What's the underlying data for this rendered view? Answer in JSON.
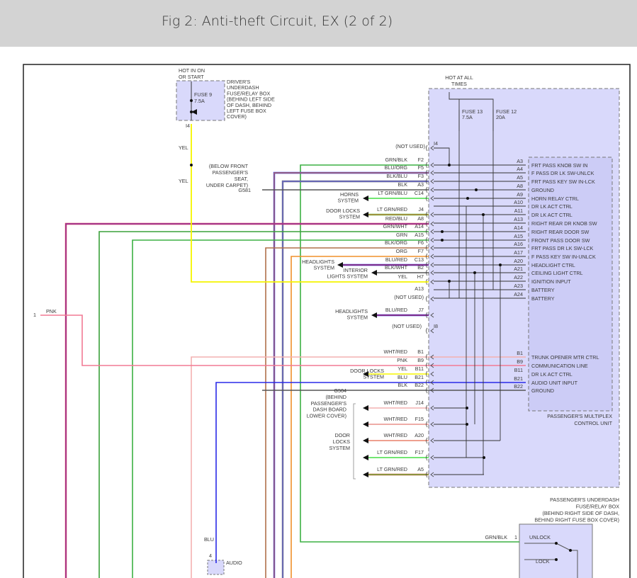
{
  "header": {
    "title": "Fig 2: Anti-theft Circuit, EX (2 of 2)"
  },
  "colors": {
    "box_fill": "#d9d9fb",
    "module_fill": "#ccccf8",
    "box_border": "#777777"
  },
  "drivers_box": {
    "hot_label": [
      "HOT IN ON",
      "OR START"
    ],
    "fuse": [
      "FUSE 9",
      "7.5A"
    ],
    "desc": [
      "DRIVER'S",
      "UNDERDASH",
      "FUSE/RELAY BOX",
      "(BEHIND LEFT SIDE",
      "OF DASH, BEHIND",
      "LEFT FUSE BOX",
      "COVER)"
    ],
    "pin": "I4",
    "wire_labels": [
      "YEL",
      "YEL"
    ]
  },
  "g581": {
    "label": "G581",
    "desc": [
      "(BELOW FRONT",
      "PASSENGER'S",
      "SEAT,",
      "UNDER CARPET)"
    ]
  },
  "g504": {
    "label": "G504",
    "desc": [
      "(BEHIND",
      "PASSENGER'S",
      "DASH BOARD",
      "LOWER COVER)"
    ]
  },
  "pass_box": {
    "hot_label": [
      "HOT AT ALL",
      "TIMES"
    ],
    "fuse13": [
      "FUSE 13",
      "7.5A"
    ],
    "fuse12": [
      "FUSE 12",
      "20A"
    ],
    "desc": [
      "PASSENGER'S UNDERDASH",
      "FUSE/RELAY BOX",
      "(BEHIND RIGHT SIDE OF DASH,",
      "BEHIND RIGHT FUSE BOX COVER)"
    ]
  },
  "module": {
    "desc": [
      "PASSENGER'S MULTIPLEX",
      "CONTROL UNIT"
    ],
    "pins": [
      {
        "pin": "A3",
        "name": "FRT PASS KNOB SW IN"
      },
      {
        "pin": "A4",
        "name": "F PASS DR LK SW-UNLCK"
      },
      {
        "pin": "A5",
        "name": "FRT PASS KEY SW IN-LCK"
      },
      {
        "pin": "A8",
        "name": "GROUND"
      },
      {
        "pin": "A9",
        "name": "HORN RELAY CTRL"
      },
      {
        "pin": "A10",
        "name": "DR LK ACT CTRL"
      },
      {
        "pin": "A11",
        "name": "DR LK ACT CTRL"
      },
      {
        "pin": "A13",
        "name": "RIGHT REAR DR KNOB SW"
      },
      {
        "pin": "A14",
        "name": "RIGHT REAR DOOR SW"
      },
      {
        "pin": "A15",
        "name": "FRONT PASS DOOR SW"
      },
      {
        "pin": "A16",
        "name": "FRT PASS DR LK SW-LCK"
      },
      {
        "pin": "A17",
        "name": "F PASS KEY SW IN-UNLCK"
      },
      {
        "pin": "A20",
        "name": "HEADLIGHT CTRL"
      },
      {
        "pin": "A21",
        "name": "CEILING LIGHT CTRL"
      },
      {
        "pin": "A22",
        "name": "IGNITION INPUT"
      },
      {
        "pin": "A23",
        "name": "BATTERY"
      },
      {
        "pin": "A24",
        "name": "BATTERY"
      },
      {
        "pin": "B1",
        "name": "TRUNK OPENER MTR CTRL"
      },
      {
        "pin": "B9",
        "name": "COMMUNICATION LINE"
      },
      {
        "pin": "B11",
        "name": "DR LK ACT CTRL"
      },
      {
        "pin": "B21",
        "name": "AUDIO UNIT INPUT"
      },
      {
        "pin": "B22",
        "name": "GROUND"
      }
    ]
  },
  "connectors": [
    {
      "pin": "I4",
      "wire": "(NOT USED)",
      "c1": "",
      "c2": ""
    },
    {
      "pin": "F2",
      "wire": "GRN/BLK",
      "c1": "#3cb043",
      "c2": ""
    },
    {
      "pin": "F5",
      "wire": "BLU/ORG",
      "c1": "#2a2ae8",
      "c2": "#f08a24"
    },
    {
      "pin": "F3",
      "wire": "BLK/BLU",
      "c1": "#666677",
      "c2": "#6a6af0"
    },
    {
      "pin": "A3",
      "wire": "BLK",
      "c1": "#555555",
      "c2": ""
    },
    {
      "pin": "C14",
      "wire": "LT GRN/BLU",
      "c1": "#44dd44",
      "c2": ""
    },
    {
      "pin": "J4",
      "wire": "LT GRN/RED",
      "c1": "#66cc44",
      "c2": "#d45a3a"
    },
    {
      "pin": "A8",
      "wire": "RED/BLU",
      "c1": "#e0304a",
      "c2": "#6a3ac8"
    },
    {
      "pin": "A14",
      "wire": "GRN/WHT",
      "c1": "#3aa03a",
      "c2": ""
    },
    {
      "pin": "A15",
      "wire": "GRN",
      "c1": "#3cb043",
      "c2": ""
    },
    {
      "pin": "F6",
      "wire": "BLK/ORG",
      "c1": "#b0704a",
      "c2": ""
    },
    {
      "pin": "F7",
      "wire": "ORG",
      "c1": "#f0902a",
      "c2": ""
    },
    {
      "pin": "C13",
      "wire": "BLU/RED",
      "c1": "#2a2ae8",
      "c2": "#d03030"
    },
    {
      "pin": "B2",
      "wire": "BLK/WHT",
      "c1": "#555555",
      "c2": ""
    },
    {
      "pin": "H7",
      "wire": "YEL",
      "c1": "#f5f500",
      "c2": ""
    },
    {
      "pin": "A13",
      "wire": "(NOT USED)",
      "c1": "",
      "c2": ""
    },
    {
      "pin": "J7",
      "wire": "BLU/RED",
      "c1": "#2a2ae8",
      "c2": "#d03030"
    },
    {
      "pin": "I8",
      "wire": "(NOT USED)",
      "c1": "",
      "c2": ""
    },
    {
      "pin": "B1",
      "wire": "WHT/RED",
      "c1": "#f4b0b0",
      "c2": ""
    },
    {
      "pin": "B9",
      "wire": "PNK",
      "c1": "#f27a94",
      "c2": ""
    },
    {
      "pin": "B11",
      "wire": "YEL",
      "c1": "#f5f500",
      "c2": ""
    },
    {
      "pin": "B21",
      "wire": "BLU",
      "c1": "#2a2ae8",
      "c2": ""
    },
    {
      "pin": "B22",
      "wire": "BLK",
      "c1": "#555555",
      "c2": ""
    },
    {
      "pin": "J14",
      "wire": "WHT/RED",
      "c1": "#f4b0b0",
      "c2": ""
    },
    {
      "pin": "F15",
      "wire": "WHT/RED",
      "c1": "#e8908a",
      "c2": ""
    },
    {
      "pin": "A20",
      "wire": "WHT/RED",
      "c1": "#e8806a",
      "c2": ""
    },
    {
      "pin": "F17",
      "wire": "LT GRN/RED",
      "c1": "#44dd44",
      "c2": ""
    },
    {
      "pin": "A5",
      "wire": "LT GRN/RED",
      "c1": "#d45a3a",
      "c2": "#44cc44"
    }
  ],
  "destinations": {
    "horns": [
      "HORNS",
      "SYSTEM"
    ],
    "door_locks_1": [
      "DOOR LOCKS",
      "SYSTEM"
    ],
    "headlights_1": [
      "HEADLIGHTS",
      "SYSTEM"
    ],
    "interior": [
      "INTERIOR",
      "LIGHTS SYSTEM"
    ],
    "headlights_2": [
      "HEADLIGHTS",
      "SYSTEM"
    ],
    "door_locks_2": [
      "DOOR LOCKS",
      "SYSTEM"
    ],
    "door_locks_3": [
      "DOOR",
      "LOCKS",
      "SYSTEM"
    ]
  },
  "pnk_end": {
    "pin": "1",
    "wire": "PNK"
  },
  "audio": {
    "wire": "BLU",
    "pin": "4",
    "label": "AUDIO"
  },
  "door_switch": {
    "wire": "GRN/BLK",
    "pin": "1",
    "unlock": "UNLOCK",
    "lock": "LOCK"
  }
}
